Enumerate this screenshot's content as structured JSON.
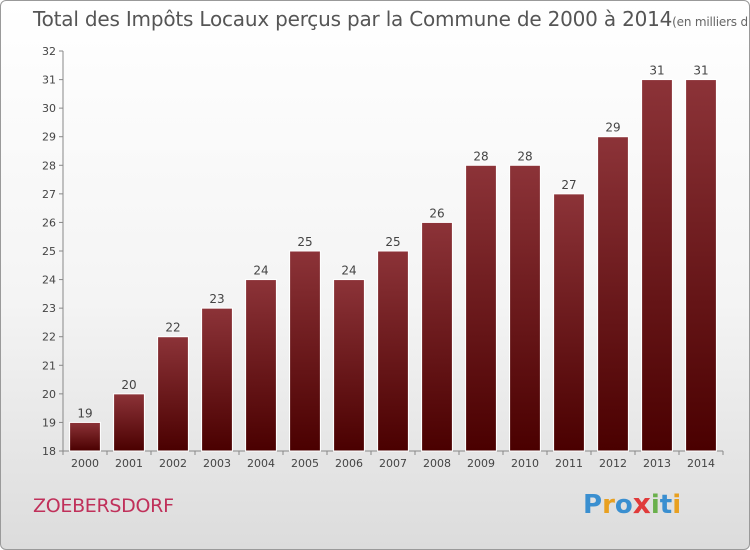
{
  "chart_data": {
    "type": "bar",
    "title": "Total des Impôts Locaux perçus par la Commune de 2000 à 2014",
    "unit_label": "(en milliers d'€)",
    "categories": [
      "2000",
      "2001",
      "2002",
      "2003",
      "2004",
      "2005",
      "2006",
      "2007",
      "2008",
      "2009",
      "2010",
      "2011",
      "2012",
      "2013",
      "2014"
    ],
    "values": [
      19,
      20,
      22,
      23,
      24,
      25,
      24,
      25,
      26,
      28,
      28,
      27,
      29,
      31,
      31
    ],
    "ylim": [
      18,
      32
    ],
    "yticks": [
      18,
      19,
      20,
      21,
      22,
      23,
      24,
      25,
      26,
      27,
      28,
      29,
      30,
      31,
      32
    ],
    "xlabel": "",
    "ylabel": "",
    "grid": false,
    "bar_color_top": "#8c3338",
    "bar_color_bottom": "#4a0000"
  },
  "footer": {
    "commune_name": "ZOEBERSDORF",
    "commune_color": "#c0305a",
    "logo_letters": [
      {
        "ch": "P",
        "color": "#3a8fd0"
      },
      {
        "ch": "r",
        "color": "#e8a020"
      },
      {
        "ch": "o",
        "color": "#3a8fd0"
      },
      {
        "ch": "x",
        "color": "#e03a3a"
      },
      {
        "ch": "i",
        "color": "#6ab04c"
      },
      {
        "ch": "t",
        "color": "#3a8fd0"
      },
      {
        "ch": "i",
        "color": "#e8a020"
      }
    ]
  }
}
